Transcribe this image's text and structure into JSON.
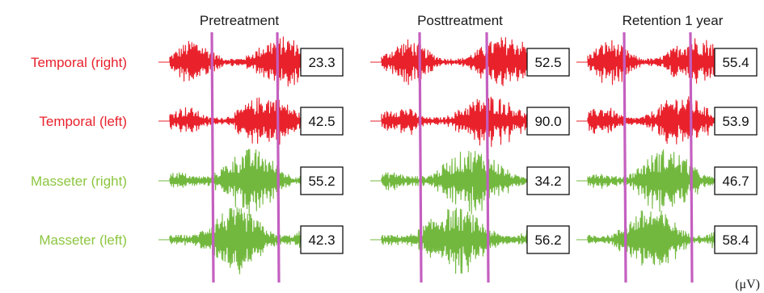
{
  "chart_data": {
    "type": "table",
    "columns": [
      "Pretreatment",
      "Posttreatment",
      "Retention 1 year"
    ],
    "rows": [
      {
        "label": "Temporal (right)",
        "muscle": "temporal",
        "values": [
          "23.3",
          "52.5",
          "55.4"
        ]
      },
      {
        "label": "Temporal (left)",
        "muscle": "temporal",
        "values": [
          "42.5",
          "90.0",
          "53.9"
        ]
      },
      {
        "label": "Masseter (right)",
        "muscle": "masseter",
        "values": [
          "55.2",
          "34.2",
          "46.7"
        ]
      },
      {
        "label": "Masseter (left)",
        "muscle": "masseter",
        "values": [
          "42.3",
          "56.2",
          "58.4"
        ]
      }
    ],
    "unit": "(μV)",
    "colors": {
      "temporal": "#e8212b",
      "masseter": "#72b83e",
      "marker": "#c45fc0",
      "label_masseter": "#8cc63f"
    }
  }
}
